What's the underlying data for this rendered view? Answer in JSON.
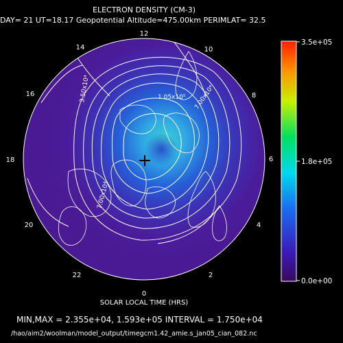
{
  "header": {
    "title": "ELECTRON DENSITY (CM-3)",
    "subtitle": "DAY= 21 UT=18.17 Geopotential Altitude=475.00km PERIMLAT= 32.5"
  },
  "axis": {
    "xlabel": "SOLAR LOCAL TIME (HRS)",
    "hour_labels": [
      "0",
      "2",
      "4",
      "6",
      "8",
      "10",
      "12",
      "14",
      "16",
      "18",
      "20",
      "22"
    ]
  },
  "stats": {
    "line": "MIN,MAX =  2.355e+04, 1.593e+05 INTERVAL =  1.750e+04"
  },
  "footer": {
    "file_path": "/hao/aim2/woolman/model_output/timegcm1.42_amie.s_jan05_cian_082.nc"
  },
  "colorbar": {
    "max_label": "3.5e+05",
    "mid_label": "1.8e+05",
    "min_label": "0.0e+00"
  },
  "contour_labels": [
    "1.05x10⁵",
    "7.00x10⁴",
    "3.50x10⁴",
    "7.00x10⁴"
  ],
  "colors": {
    "background": "#000000",
    "low": "#4a1a96",
    "mid": "#1f64dc",
    "high": "#38c8d8"
  }
}
